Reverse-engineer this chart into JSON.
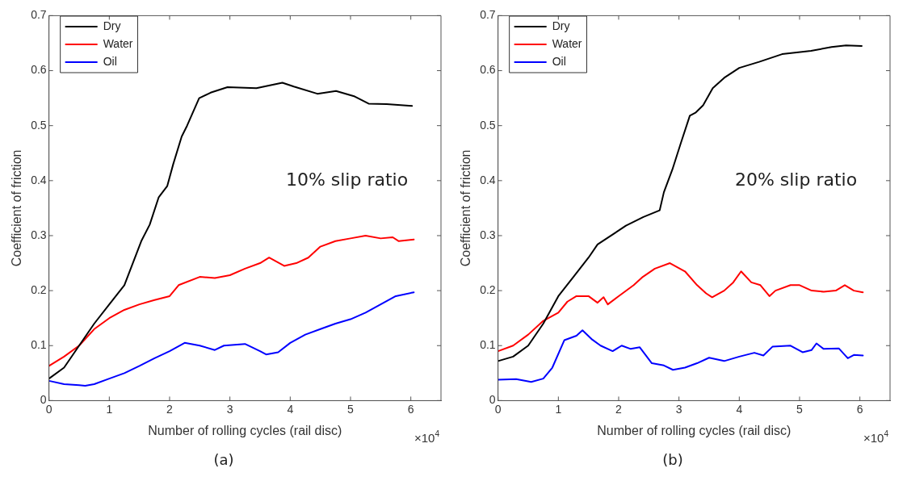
{
  "chart_data": [
    {
      "type": "line",
      "title": "(a)",
      "xlabel": "Number of rolling cycles (rail disc)",
      "ylabel": "Coefficient of friction",
      "annotations": [
        "10% slip ratio",
        "×10$^{4}$"
      ],
      "xlim": [
        0,
        6.5
      ],
      "xticks": [
        0,
        1,
        2,
        3,
        4,
        5,
        6
      ],
      "ylim": [
        0,
        0.7
      ],
      "yticks": [
        0,
        0.1,
        0.2,
        0.3,
        0.4,
        0.5,
        0.6,
        0.7
      ],
      "grid": false,
      "legend": "top left",
      "marker": "none",
      "line_style": "solid",
      "series": [
        {
          "name": "Dry",
          "color": "#000000",
          "x": [
            0,
            0.25,
            0.5,
            0.75,
            1.0,
            1.25,
            1.53,
            1.67,
            1.82,
            1.96,
            2.06,
            2.2,
            2.29,
            2.49,
            2.68,
            2.96,
            3.44,
            3.87,
            4.06,
            4.45,
            4.76,
            5.07,
            5.3,
            5.6,
            6.02
          ],
          "values": [
            0.04,
            0.06,
            0.1,
            0.14,
            0.175,
            0.21,
            0.29,
            0.32,
            0.37,
            0.39,
            0.43,
            0.48,
            0.5,
            0.55,
            0.56,
            0.57,
            0.568,
            0.578,
            0.571,
            0.558,
            0.563,
            0.553,
            0.54,
            0.539,
            0.536
          ]
        },
        {
          "name": "Water",
          "color": "#ff0000",
          "x": [
            0,
            0.25,
            0.5,
            0.75,
            1.0,
            1.25,
            1.5,
            1.75,
            2.0,
            2.15,
            2.5,
            2.75,
            3.0,
            3.25,
            3.5,
            3.65,
            3.9,
            4.1,
            4.3,
            4.5,
            4.75,
            5.0,
            5.25,
            5.5,
            5.7,
            5.8,
            6.05
          ],
          "values": [
            0.063,
            0.08,
            0.1,
            0.13,
            0.15,
            0.165,
            0.175,
            0.183,
            0.19,
            0.21,
            0.225,
            0.223,
            0.228,
            0.24,
            0.25,
            0.26,
            0.245,
            0.25,
            0.26,
            0.28,
            0.29,
            0.295,
            0.3,
            0.295,
            0.297,
            0.29,
            0.293
          ]
        },
        {
          "name": "Oil",
          "color": "#0000ff",
          "x": [
            0,
            0.25,
            0.5,
            0.6,
            0.75,
            1.0,
            1.25,
            1.5,
            1.75,
            2.0,
            2.25,
            2.5,
            2.75,
            2.9,
            3.25,
            3.5,
            3.6,
            3.8,
            4.0,
            4.25,
            4.5,
            4.75,
            5.0,
            5.25,
            5.5,
            5.75,
            6.05
          ],
          "values": [
            0.036,
            0.03,
            0.028,
            0.027,
            0.03,
            0.04,
            0.05,
            0.063,
            0.077,
            0.09,
            0.105,
            0.1,
            0.092,
            0.1,
            0.103,
            0.09,
            0.084,
            0.088,
            0.105,
            0.12,
            0.13,
            0.14,
            0.148,
            0.16,
            0.175,
            0.19,
            0.197
          ]
        }
      ]
    },
    {
      "type": "line",
      "title": "(b)",
      "xlabel": "Number of rolling cycles (rail disc)",
      "ylabel": "Coefficient of friction",
      "annotations": [
        "20% slip ratio",
        "×10$^{4}$"
      ],
      "xlim": [
        0,
        6.5
      ],
      "xticks": [
        0,
        1,
        2,
        3,
        4,
        5,
        6
      ],
      "ylim": [
        0,
        0.7
      ],
      "yticks": [
        0,
        0.1,
        0.2,
        0.3,
        0.4,
        0.5,
        0.6,
        0.7
      ],
      "grid": false,
      "legend": "top left",
      "marker": "none",
      "line_style": "solid",
      "series": [
        {
          "name": "Dry",
          "color": "#000000",
          "x": [
            0,
            0.25,
            0.5,
            0.75,
            1.0,
            1.25,
            1.5,
            1.65,
            2.12,
            2.41,
            2.68,
            2.75,
            2.89,
            3.03,
            3.18,
            3.28,
            3.4,
            3.56,
            3.75,
            4.0,
            4.33,
            4.71,
            5.19,
            5.53,
            5.77,
            6.03
          ],
          "values": [
            0.072,
            0.08,
            0.1,
            0.14,
            0.19,
            0.225,
            0.26,
            0.284,
            0.318,
            0.334,
            0.346,
            0.379,
            0.42,
            0.468,
            0.518,
            0.524,
            0.537,
            0.568,
            0.587,
            0.605,
            0.616,
            0.63,
            0.636,
            0.643,
            0.646,
            0.645
          ]
        },
        {
          "name": "Water",
          "color": "#ff0000",
          "x": [
            0,
            0.25,
            0.5,
            0.75,
            1.0,
            1.15,
            1.3,
            1.5,
            1.65,
            1.75,
            1.82,
            2.0,
            2.25,
            2.4,
            2.6,
            2.85,
            3.1,
            3.3,
            3.45,
            3.55,
            3.75,
            3.9,
            4.03,
            4.2,
            4.35,
            4.5,
            4.6,
            4.85,
            5.0,
            5.2,
            5.4,
            5.6,
            5.75,
            5.9,
            6.05
          ],
          "values": [
            0.09,
            0.1,
            0.12,
            0.145,
            0.16,
            0.18,
            0.19,
            0.19,
            0.178,
            0.188,
            0.175,
            0.19,
            0.21,
            0.225,
            0.24,
            0.25,
            0.235,
            0.21,
            0.195,
            0.188,
            0.2,
            0.215,
            0.235,
            0.215,
            0.21,
            0.19,
            0.2,
            0.21,
            0.21,
            0.2,
            0.198,
            0.2,
            0.21,
            0.2,
            0.197
          ]
        },
        {
          "name": "Oil",
          "color": "#0000ff",
          "x": [
            0,
            0.3,
            0.55,
            0.75,
            0.9,
            1.1,
            1.3,
            1.4,
            1.55,
            1.7,
            1.9,
            2.05,
            2.2,
            2.35,
            2.55,
            2.75,
            2.9,
            3.1,
            3.3,
            3.5,
            3.75,
            4.0,
            4.25,
            4.4,
            4.55,
            4.85,
            5.05,
            5.2,
            5.28,
            5.4,
            5.65,
            5.8,
            5.9,
            6.05
          ],
          "values": [
            0.038,
            0.039,
            0.034,
            0.04,
            0.06,
            0.11,
            0.118,
            0.128,
            0.112,
            0.1,
            0.09,
            0.1,
            0.094,
            0.097,
            0.068,
            0.064,
            0.056,
            0.06,
            0.068,
            0.078,
            0.072,
            0.08,
            0.087,
            0.082,
            0.098,
            0.1,
            0.088,
            0.092,
            0.104,
            0.094,
            0.095,
            0.077,
            0.083,
            0.082
          ]
        }
      ]
    }
  ]
}
